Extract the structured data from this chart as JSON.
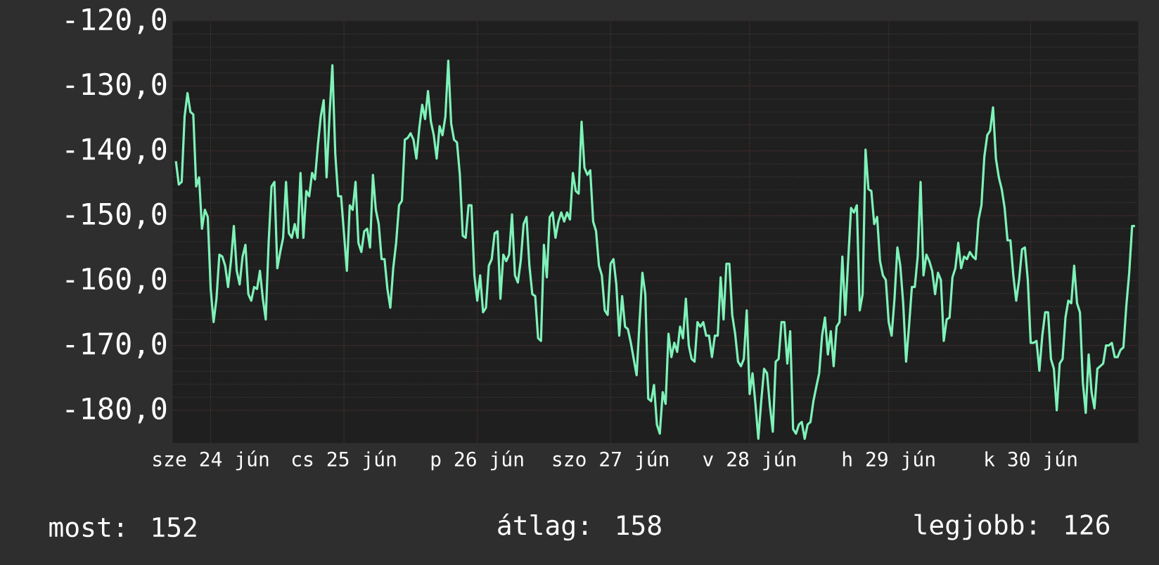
{
  "chart_data": {
    "type": "line",
    "categories": [
      null,
      null,
      null,
      null,
      null,
      null,
      null,
      null,
      null,
      null,
      null,
      null,
      "sze 24 jún",
      null,
      null,
      null,
      null,
      null,
      null,
      null,
      null,
      null,
      null,
      null,
      null,
      null,
      null,
      null,
      null,
      null,
      null,
      null,
      null,
      null,
      null,
      null,
      null,
      null,
      null,
      null,
      null,
      null,
      null,
      null,
      null,
      null,
      null,
      null,
      null,
      null,
      null,
      null,
      null,
      null,
      null,
      null,
      null,
      null,
      "cs 25 jún",
      null,
      null,
      null,
      null,
      null,
      null,
      null,
      null,
      null,
      null,
      null,
      null,
      null,
      null,
      null,
      null,
      null,
      null,
      null,
      null,
      null,
      null,
      null,
      null,
      null,
      null,
      null,
      null,
      null,
      null,
      null,
      null,
      null,
      null,
      null,
      null,
      null,
      null,
      null,
      null,
      null,
      null,
      null,
      null,
      null,
      "p 26 jún",
      null,
      null,
      null,
      null,
      null,
      null,
      null,
      null,
      null,
      null,
      null,
      null,
      null,
      null,
      null,
      null,
      null,
      null,
      null,
      null,
      null,
      null,
      null,
      null,
      null,
      null,
      null,
      null,
      null,
      null,
      null,
      null,
      null,
      null,
      null,
      null,
      null,
      null,
      null,
      null,
      null,
      null,
      null,
      null,
      null,
      "szo 27 jún",
      null,
      null,
      null,
      null,
      null,
      null,
      null,
      null,
      null,
      null,
      null,
      null,
      null,
      null,
      null,
      null,
      null,
      null,
      null,
      null,
      null,
      null,
      null,
      null,
      null,
      null,
      null,
      null,
      null,
      null,
      null,
      null,
      null,
      null,
      null,
      null,
      null,
      null,
      null,
      null,
      null,
      null,
      null,
      null,
      null,
      null,
      null,
      "v 28 jún",
      null,
      null,
      null,
      null,
      null,
      null,
      null,
      null,
      null,
      null,
      null,
      null,
      null,
      null,
      null,
      null,
      null,
      null,
      null,
      null,
      null,
      null,
      null,
      null,
      null,
      null,
      null,
      null,
      null,
      null,
      null,
      null,
      null,
      null,
      null,
      null,
      null,
      null,
      null,
      null,
      null,
      null,
      null,
      null,
      null,
      null,
      null,
      "h 29 jún",
      null,
      null,
      null,
      null,
      null,
      null,
      null,
      null,
      null,
      null,
      null,
      null,
      null,
      null,
      null,
      null,
      null,
      null,
      null,
      null,
      null,
      null,
      null,
      null,
      null,
      null,
      null,
      null,
      null,
      null,
      null,
      null,
      null,
      null,
      null,
      null,
      null,
      null,
      null,
      null,
      null,
      null,
      null,
      null,
      null,
      null,
      null,
      null,
      "k 30 jún",
      null,
      null,
      null,
      null,
      null,
      null,
      null,
      null,
      null,
      null,
      null,
      null,
      null,
      null,
      null,
      null,
      null,
      null,
      null,
      null,
      null,
      null,
      null,
      null,
      null,
      null,
      null,
      null,
      null,
      null,
      null,
      null,
      null,
      null,
      null,
      null
    ],
    "ylim": [
      -185,
      -120
    ],
    "yticks": [
      {
        "value": -120,
        "label": "-120,0"
      },
      {
        "value": -130,
        "label": "-130,0"
      },
      {
        "value": -140,
        "label": "-140,0"
      },
      {
        "value": -150,
        "label": "-150,0"
      },
      {
        "value": -160,
        "label": "-160,0"
      },
      {
        "value": -170,
        "label": "-170,0"
      },
      {
        "value": -180,
        "label": "-180,0"
      }
    ],
    "grid": true,
    "series": [
      {
        "color": "#7ef2b8",
        "values": [
          -141.6,
          -145.2,
          -144.8,
          -134.7,
          -131.1,
          -134.0,
          -134.4,
          -145.5,
          -144.1,
          -152.0,
          -149.1,
          -150.2,
          -161.3,
          -166.4,
          -162.8,
          -156.0,
          -156.3,
          -157.7,
          -161.0,
          -157.0,
          -151.6,
          -158.5,
          -160.6,
          -156.3,
          -154.5,
          -162.1,
          -163.1,
          -161.0,
          -161.3,
          -158.5,
          -162.8,
          -166.0,
          -154.2,
          -145.5,
          -144.8,
          -158.1,
          -155.6,
          -153.4,
          -144.8,
          -152.7,
          -153.4,
          -151.3,
          -153.4,
          -143.4,
          -153.4,
          -146.2,
          -147.0,
          -143.4,
          -144.4,
          -139.1,
          -134.7,
          -132.2,
          -144.1,
          -134.7,
          -126.8,
          -140.5,
          -147.0,
          -147.0,
          -152.7,
          -158.5,
          -148.4,
          -149.1,
          -144.8,
          -154.2,
          -155.6,
          -152.4,
          -152.0,
          -154.9,
          -143.7,
          -149.1,
          -151.3,
          -156.7,
          -156.7,
          -161.3,
          -164.2,
          -158.1,
          -154.2,
          -148.4,
          -147.7,
          -138.3,
          -138.0,
          -137.3,
          -138.3,
          -141.2,
          -136.5,
          -132.9,
          -135.1,
          -130.8,
          -135.5,
          -137.6,
          -141.2,
          -136.2,
          -137.6,
          -134.7,
          -126.1,
          -135.8,
          -138.3,
          -138.7,
          -143.7,
          -153.1,
          -153.4,
          -148.4,
          -148.4,
          -159.2,
          -163.1,
          -159.2,
          -164.9,
          -164.2,
          -157.7,
          -156.7,
          -152.7,
          -152.4,
          -162.8,
          -156.0,
          -157.0,
          -156.0,
          -149.8,
          -159.2,
          -160.3,
          -157.0,
          -151.3,
          -150.2,
          -157.7,
          -162.1,
          -162.4,
          -168.9,
          -169.3,
          -154.5,
          -159.5,
          -150.2,
          -149.5,
          -153.4,
          -150.9,
          -149.5,
          -150.9,
          -149.5,
          -150.6,
          -143.4,
          -146.2,
          -146.6,
          -135.5,
          -142.6,
          -143.7,
          -143.0,
          -150.9,
          -152.4,
          -157.7,
          -159.2,
          -164.6,
          -165.3,
          -157.4,
          -156.7,
          -160.6,
          -168.5,
          -162.4,
          -167.1,
          -167.5,
          -169.6,
          -172.1,
          -174.6,
          -166.4,
          -158.8,
          -162.1,
          -178.2,
          -178.6,
          -176.1,
          -182.2,
          -183.6,
          -177.2,
          -179.0,
          -168.2,
          -171.8,
          -169.6,
          -171.0,
          -167.1,
          -168.9,
          -162.8,
          -170.0,
          -172.1,
          -172.5,
          -166.4,
          -167.1,
          -166.4,
          -168.5,
          -168.5,
          -171.8,
          -168.5,
          -168.5,
          -159.5,
          -166.0,
          -157.4,
          -157.4,
          -165.3,
          -168.2,
          -172.5,
          -173.2,
          -172.1,
          -164.6,
          -177.5,
          -174.3,
          -179.0,
          -184.4,
          -178.6,
          -173.6,
          -174.3,
          -179.3,
          -183.3,
          -172.5,
          -172.1,
          -166.4,
          -166.4,
          -172.8,
          -167.8,
          -182.9,
          -183.6,
          -182.2,
          -181.8,
          -184.4,
          -182.2,
          -181.8,
          -178.6,
          -176.4,
          -174.3,
          -168.5,
          -165.7,
          -171.4,
          -167.8,
          -173.2,
          -167.1,
          -166.4,
          -156.3,
          -165.3,
          -157.0,
          -148.8,
          -149.5,
          -148.4,
          -164.6,
          -162.1,
          -139.8,
          -145.9,
          -146.2,
          -151.3,
          -150.2,
          -157.0,
          -159.2,
          -159.9,
          -166.4,
          -168.5,
          -162.8,
          -154.9,
          -157.7,
          -163.5,
          -172.5,
          -167.1,
          -161.0,
          -161.0,
          -156.3,
          -144.8,
          -159.2,
          -156.0,
          -157.0,
          -158.5,
          -162.1,
          -158.8,
          -159.9,
          -169.3,
          -166.0,
          -165.7,
          -159.5,
          -158.1,
          -154.2,
          -158.1,
          -156.3,
          -156.7,
          -155.6,
          -156.3,
          -156.7,
          -150.6,
          -148.4,
          -140.9,
          -137.6,
          -136.9,
          -133.3,
          -141.2,
          -144.1,
          -145.9,
          -148.8,
          -153.8,
          -153.8,
          -159.2,
          -163.1,
          -159.9,
          -155.2,
          -154.9,
          -159.9,
          -169.6,
          -169.6,
          -169.3,
          -173.9,
          -168.5,
          -164.9,
          -164.9,
          -172.1,
          -173.6,
          -180.0,
          -172.8,
          -172.1,
          -165.7,
          -163.1,
          -163.5,
          -157.7,
          -163.5,
          -164.9,
          -175.7,
          -180.4,
          -171.4,
          -177.2,
          -179.7,
          -173.6,
          -173.2,
          -172.8,
          -170.0,
          -170.0,
          -169.6,
          -171.8,
          -171.8,
          -170.7,
          -170.3,
          -163.9,
          -158.8,
          -151.6,
          -151.6
        ]
      }
    ],
    "annotations": [
      "most: 152",
      "átlag: 158",
      "legjobb: 126"
    ]
  }
}
